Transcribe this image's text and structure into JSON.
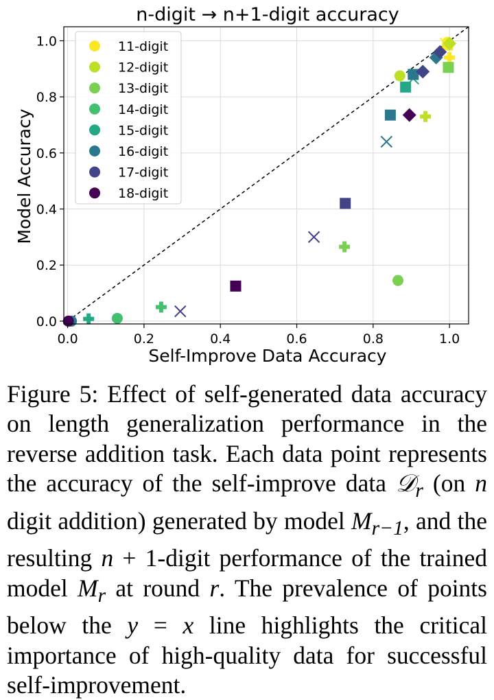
{
  "chart_data": {
    "type": "scatter",
    "title": "n-digit → n+1-digit accuracy",
    "xlabel": "Self-Improve Data Accuracy",
    "ylabel": "Model Accuracy",
    "xlim": [
      -0.01,
      1.05
    ],
    "ylim": [
      -0.01,
      1.05
    ],
    "xticks": [
      0.0,
      0.2,
      0.4,
      0.6,
      0.8,
      1.0
    ],
    "yticks": [
      0.0,
      0.2,
      0.4,
      0.6,
      0.8,
      1.0
    ],
    "xtick_labels": [
      "0.0",
      "0.2",
      "0.4",
      "0.6",
      "0.8",
      "1.0"
    ],
    "ytick_labels": [
      "0.0",
      "0.2",
      "0.4",
      "0.6",
      "0.8",
      "1.0"
    ],
    "grid": true,
    "reference_line": "y = x",
    "legend_position": "top-left",
    "series": [
      {
        "name": "11-digit",
        "color": "#fde725",
        "points": [
          {
            "x": 0.995,
            "y": 0.995,
            "marker": "circle"
          },
          {
            "x": 0.995,
            "y": 0.985,
            "marker": "square"
          },
          {
            "x": 1.0,
            "y": 0.94,
            "marker": "plus"
          },
          {
            "x": 0.99,
            "y": 0.99,
            "marker": "x"
          }
        ]
      },
      {
        "name": "12-digit",
        "color": "#bddf26",
        "points": [
          {
            "x": 0.87,
            "y": 0.875,
            "marker": "circle"
          },
          {
            "x": 1.0,
            "y": 0.99,
            "marker": "diamond"
          },
          {
            "x": 0.937,
            "y": 0.73,
            "marker": "plus"
          }
        ]
      },
      {
        "name": "13-digit",
        "color": "#7ad151",
        "points": [
          {
            "x": 0.865,
            "y": 0.145,
            "marker": "circle"
          },
          {
            "x": 0.997,
            "y": 0.905,
            "marker": "square"
          },
          {
            "x": 0.725,
            "y": 0.265,
            "marker": "plus"
          }
        ]
      },
      {
        "name": "14-digit",
        "color": "#44bf70",
        "points": [
          {
            "x": 0.13,
            "y": 0.01,
            "marker": "circle"
          },
          {
            "x": 0.905,
            "y": 0.88,
            "marker": "circle"
          },
          {
            "x": 0.245,
            "y": 0.05,
            "marker": "plus"
          }
        ]
      },
      {
        "name": "15-digit",
        "color": "#22a884",
        "points": [
          {
            "x": 0.055,
            "y": 0.008,
            "marker": "plus"
          },
          {
            "x": 0.885,
            "y": 0.835,
            "marker": "square"
          },
          {
            "x": 0.905,
            "y": 0.865,
            "marker": "x"
          }
        ]
      },
      {
        "name": "16-digit",
        "color": "#2a788e",
        "points": [
          {
            "x": 0.01,
            "y": 0.0,
            "marker": "circle"
          },
          {
            "x": 0.845,
            "y": 0.735,
            "marker": "square"
          },
          {
            "x": 0.905,
            "y": 0.88,
            "marker": "square"
          },
          {
            "x": 0.965,
            "y": 0.94,
            "marker": "diamond"
          },
          {
            "x": 0.835,
            "y": 0.64,
            "marker": "x"
          }
        ]
      },
      {
        "name": "17-digit",
        "color": "#414487",
        "points": [
          {
            "x": 0.727,
            "y": 0.42,
            "marker": "square"
          },
          {
            "x": 0.645,
            "y": 0.3,
            "marker": "x"
          },
          {
            "x": 0.295,
            "y": 0.035,
            "marker": "x"
          },
          {
            "x": 0.93,
            "y": 0.89,
            "marker": "diamond"
          },
          {
            "x": 0.975,
            "y": 0.96,
            "marker": "diamond"
          }
        ]
      },
      {
        "name": "18-digit",
        "color": "#440154",
        "points": [
          {
            "x": 0.002,
            "y": 0.0,
            "marker": "circle"
          },
          {
            "x": 0.44,
            "y": 0.125,
            "marker": "square"
          },
          {
            "x": 0.895,
            "y": 0.735,
            "marker": "diamond"
          }
        ]
      }
    ]
  },
  "caption": {
    "t1": "Figure 5: Effect of self-generated data accuracy on length generalization performance in the reverse addition task. Each data point represents the accuracy of the self-improve data ",
    "m1": "𝒟",
    "m1sub": "r",
    "t2": " (on ",
    "m2": "n",
    "t3": " digit addition) generated by model ",
    "m3": "M",
    "m3sub": "r−1",
    "t4": ", and the resulting ",
    "m4": "n",
    "t5": " + 1-digit performance of the trained model ",
    "m5": "M",
    "m5sub": "r",
    "t6": " at round ",
    "m6": "r",
    "t7": ". The prevalence of points below the ",
    "m7": "y",
    "t8": " = ",
    "m8": "x",
    "t9": " line highlights the critical importance of high-quality data for successful self-improvement."
  }
}
